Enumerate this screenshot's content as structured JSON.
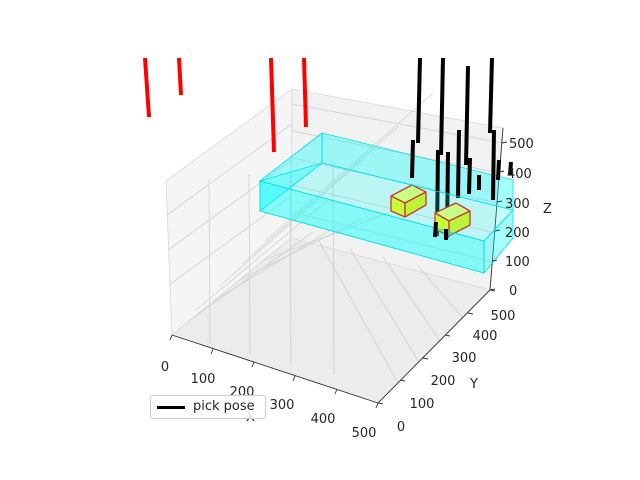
{
  "chart_data": {
    "type": "3d-line",
    "legend": {
      "placement": "lower-left",
      "entries": [
        {
          "label": "pick pose",
          "color": "#000000"
        }
      ]
    },
    "axes": {
      "x": {
        "label": "X",
        "range": [
          0,
          500
        ],
        "ticks": [
          "0",
          "100",
          "200",
          "300",
          "400",
          "500"
        ]
      },
      "y": {
        "label": "Y",
        "range": [
          0,
          500
        ],
        "ticks": [
          "0",
          "100",
          "200",
          "300",
          "400",
          "500"
        ]
      },
      "z": {
        "label": "Z",
        "range": [
          0,
          550
        ],
        "ticks": [
          "0",
          "100",
          "200",
          "300",
          "400",
          "500"
        ]
      }
    },
    "grid": true,
    "colors": {
      "pick_pose": "#000000",
      "other_pose": "#ff0000",
      "container": "#00ffff",
      "object_fill": "#ffff00",
      "object_edge": "#ff0000"
    }
  }
}
